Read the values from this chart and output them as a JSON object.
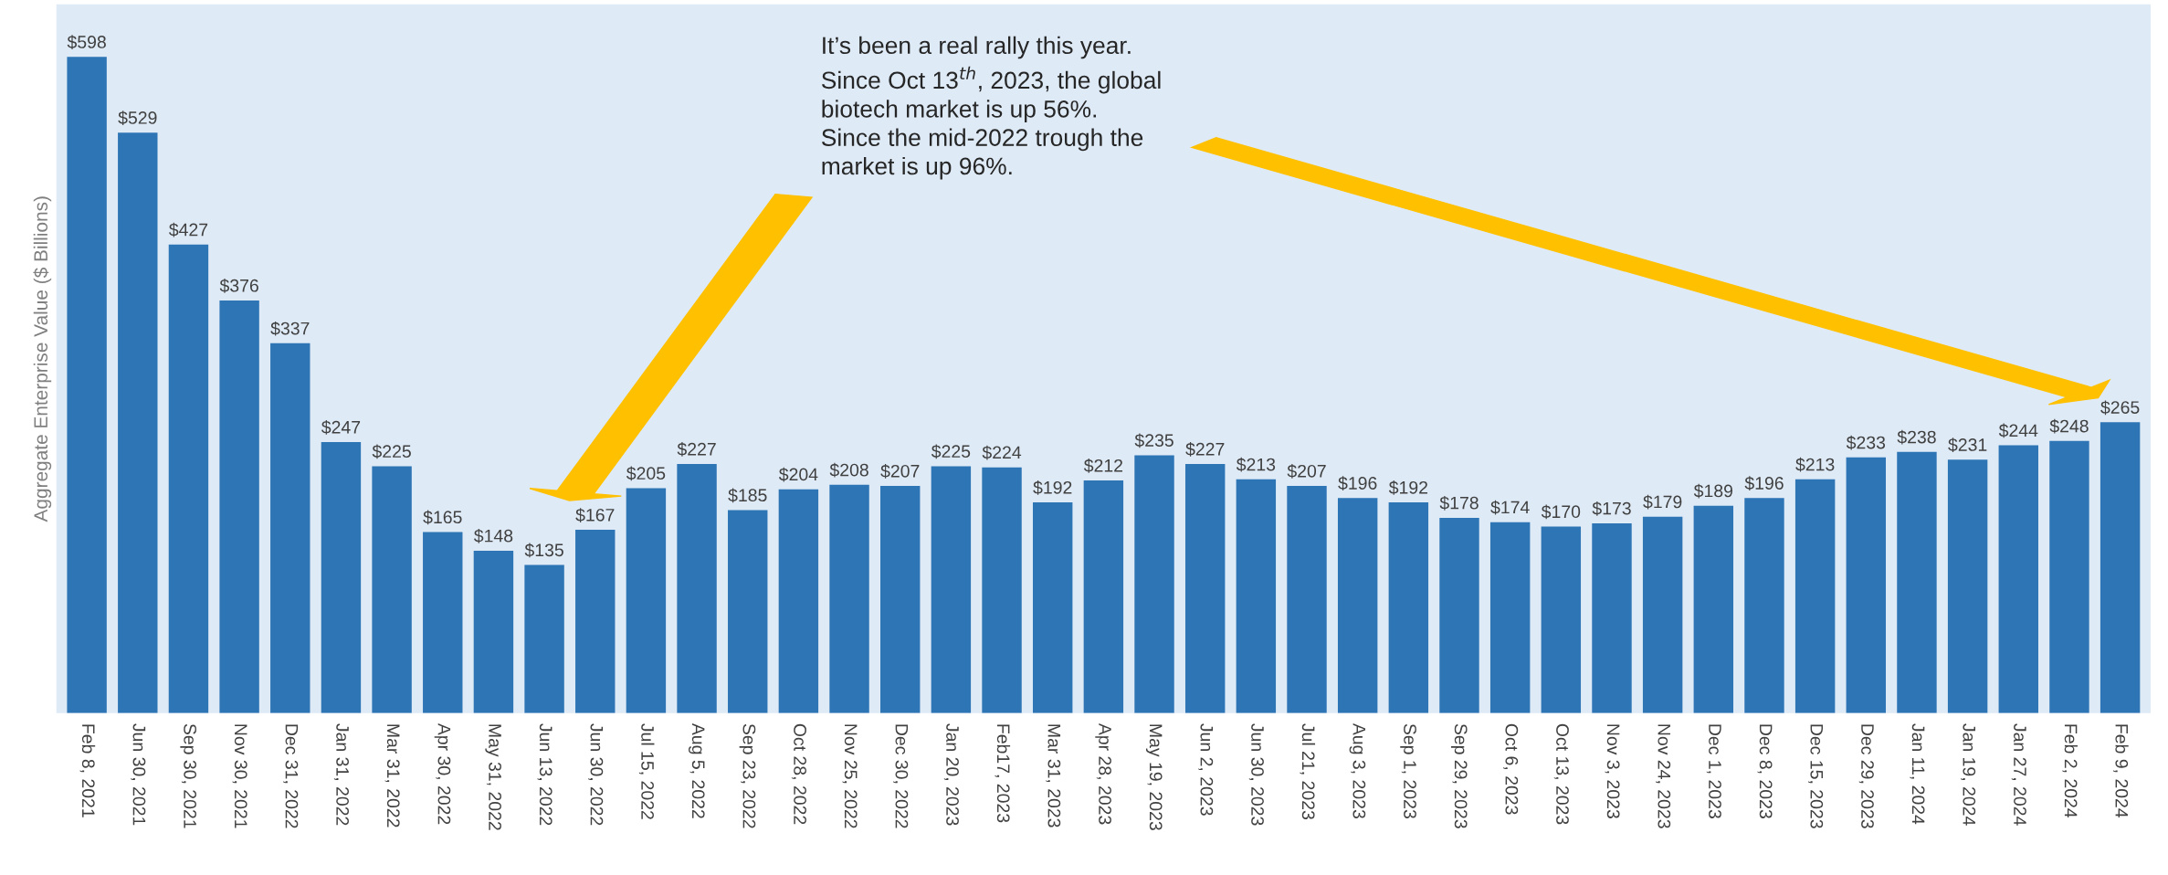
{
  "chart_data": {
    "type": "bar",
    "ylabel": "Aggregate Enterprise Value ($ Billions)",
    "categories": [
      "Feb 8, 2021",
      "Jun 30, 2021",
      "Sep 30, 2021",
      "Nov 30, 2021",
      "Dec 31, 2022",
      "Jan 31, 2022",
      "Mar 31, 2022",
      "Apr 30, 2022",
      "May 31, 2022",
      "Jun 13, 2022",
      "Jun 30, 2022",
      "Jul 15, 2022",
      "Aug 5, 2022",
      "Sep 23, 2022",
      "Oct 28, 2022",
      "Nov 25, 2022",
      "Dec 30, 2022",
      "Jan 20, 2023",
      "Feb17, 2023",
      "Mar 31, 2023",
      "Apr 28, 2023",
      "May 19, 2023",
      "Jun 2, 2023",
      "Jun 30, 2023",
      "Jul 21, 2023",
      "Aug 3, 2023",
      "Sep 1, 2023",
      "Sep 29, 2023",
      "Oct 6, 2023",
      "Oct 13, 2023",
      "Nov 3, 2023",
      "Nov 24, 2023",
      "Dec 1, 2023",
      "Dec 8, 2023",
      "Dec 15, 2023",
      "Dec 29, 2023",
      "Jan 11, 2024",
      "Jan 19, 2024",
      "Jan 27, 2024",
      "Feb 2, 2024",
      "Feb 9, 2024"
    ],
    "values": [
      598,
      529,
      427,
      376,
      337,
      247,
      225,
      165,
      148,
      135,
      167,
      205,
      227,
      185,
      204,
      208,
      207,
      225,
      224,
      192,
      212,
      235,
      227,
      213,
      207,
      196,
      192,
      178,
      174,
      170,
      173,
      179,
      189,
      196,
      213,
      233,
      238,
      231,
      244,
      248,
      265
    ],
    "value_labels": [
      "$598",
      "$529",
      "$427",
      "$376",
      "$337",
      "$247",
      "$225",
      "$165",
      "$148",
      "$135",
      "$167",
      "$205",
      "$227",
      "$185",
      "$204",
      "$208",
      "$207",
      "$225",
      "$224",
      "$192",
      "$212",
      "$235",
      "$227",
      "$213",
      "$207",
      "$196",
      "$192",
      "$178",
      "$174",
      "$170",
      "$173",
      "$179",
      "$189",
      "$196",
      "$213",
      "$233",
      "$238",
      "$231",
      "$244",
      "$248",
      "$265"
    ],
    "color": "#2e75b6",
    "annotations": [
      "It’s been a real rally this year.\nSince Oct 13$^{th}$, 2023, the global\nbiotech market is up 56%.\nSince the mid-2022 trough the\nmarket is up 96%."
    ],
    "grid": false,
    "legend": false
  }
}
